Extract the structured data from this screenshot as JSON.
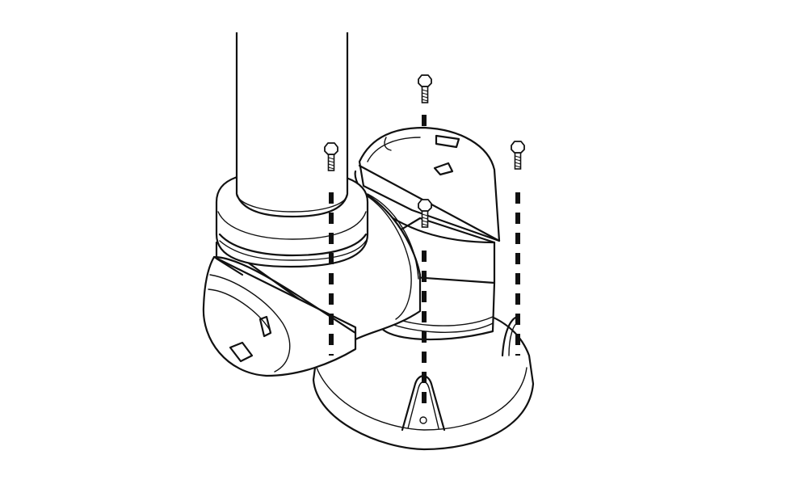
{
  "figure": {
    "subject": "robot-arm-base-mounting",
    "stroke_color": "#111111",
    "background": "#ffffff",
    "bolt_count": 4
  }
}
